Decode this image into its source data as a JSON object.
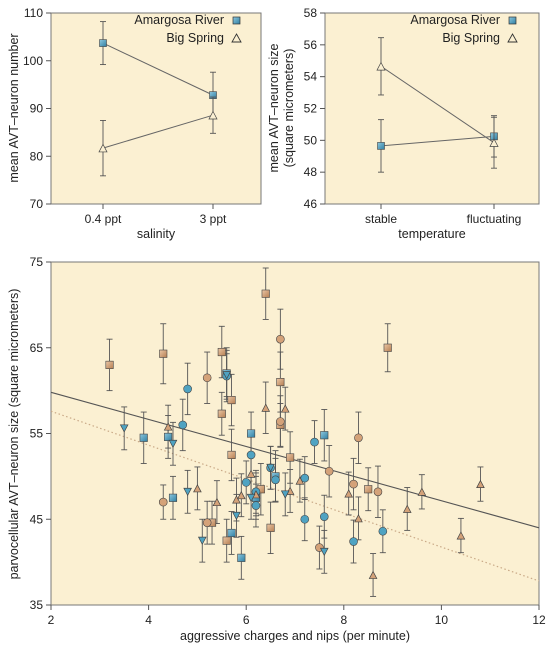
{
  "colors": {
    "panel_bg": "#fbf0d2",
    "amargosa": "#4fa3c2",
    "bigspring": "#d4a279",
    "frame": "#777777",
    "errorbar": "#555555",
    "regression": "#555555",
    "dotted_line": "#c9a987"
  },
  "chart_data": [
    {
      "type": "line",
      "categories": [
        "0.4 ppt",
        "3 ppt"
      ],
      "xlabel": "salinity",
      "ylabel": "mean AVT–neuron number",
      "ylim": [
        70,
        110
      ],
      "yticks": [
        70,
        80,
        90,
        100,
        110
      ],
      "legend_position": "top-right",
      "series": [
        {
          "name": "Amargosa River",
          "marker": "square",
          "values": [
            103.7,
            92.8
          ],
          "error": [
            4.5,
            4.8
          ]
        },
        {
          "name": "Big Spring",
          "marker": "triangle",
          "values": [
            81.7,
            88.6
          ],
          "error": [
            5.8,
            3.8
          ]
        }
      ]
    },
    {
      "type": "line",
      "categories": [
        "stable",
        "fluctuating"
      ],
      "xlabel": "temperature",
      "ylabel": "mean AVT–neuron size\n(square micrometers)",
      "ylim": [
        46,
        58
      ],
      "yticks": [
        46,
        48,
        50,
        52,
        54,
        56,
        58
      ],
      "legend_position": "top-right",
      "series": [
        {
          "name": "Amargosa River",
          "marker": "square",
          "values": [
            49.65,
            50.25
          ],
          "error": [
            1.65,
            1.3
          ]
        },
        {
          "name": "Big Spring",
          "marker": "triangle",
          "values": [
            54.65,
            49.85
          ],
          "error": [
            1.8,
            1.6
          ]
        }
      ]
    },
    {
      "type": "scatter",
      "xlabel": "aggressive charges and nips (per minute)",
      "ylabel": "parvocellular AVT–neuron size (square micrometers)",
      "xlim": [
        2,
        12
      ],
      "ylim": [
        35,
        75
      ],
      "xticks": [
        2,
        4,
        6,
        8,
        10,
        12
      ],
      "yticks": [
        35,
        45,
        55,
        65,
        75
      ],
      "lines": [
        {
          "style": "solid",
          "x": [
            2,
            12
          ],
          "y": [
            59.8,
            44.0
          ]
        },
        {
          "style": "dotted",
          "x": [
            2,
            12
          ],
          "y": [
            57.6,
            37.8
          ]
        }
      ],
      "series": [
        {
          "marker": "square",
          "color": "bigspring",
          "points": [
            [
              3.2,
              63,
              3
            ],
            [
              4.3,
              64.3,
              3.5
            ],
            [
              5.5,
              64.5,
              3
            ],
            [
              6.4,
              71.3,
              3
            ],
            [
              6.7,
              61,
              3.5
            ],
            [
              8.9,
              65,
              2.8
            ],
            [
              5.7,
              58.9,
              3
            ],
            [
              5.5,
              57.3,
              2.5
            ],
            [
              6.7,
              56,
              2.5
            ],
            [
              6.9,
              52.2,
              3
            ],
            [
              5.7,
              52.5,
              3
            ],
            [
              6.3,
              48.5,
              3
            ],
            [
              6.5,
              44,
              3
            ],
            [
              5.3,
              44.6,
              2.5
            ],
            [
              5.6,
              42.5,
              2.5
            ],
            [
              8.5,
              48.5,
              2.5
            ]
          ]
        },
        {
          "marker": "square",
          "color": "amargosa",
          "points": [
            [
              3.9,
              54.5,
              3
            ],
            [
              4.4,
              54.6,
              2.5
            ],
            [
              6.1,
              55,
              2.5
            ],
            [
              7.6,
              54.8,
              3
            ],
            [
              5.6,
              62,
              3
            ],
            [
              6.6,
              50,
              3
            ],
            [
              5.7,
              43.4,
              2.5
            ],
            [
              5.9,
              40.5,
              2.5
            ],
            [
              4.5,
              47.5,
              2.5
            ],
            [
              6.2,
              47.5,
              2.5
            ]
          ]
        },
        {
          "marker": "circle",
          "color": "bigspring",
          "points": [
            [
              6.7,
              66,
              3.5
            ],
            [
              5.2,
              61.5,
              3
            ],
            [
              8.3,
              54.5,
              3
            ],
            [
              7.7,
              50.6,
              3
            ],
            [
              8.2,
              49.1,
              3
            ],
            [
              8.7,
              48.2,
              3
            ],
            [
              4.3,
              47,
              2
            ],
            [
              5.2,
              44.6,
              2.5
            ],
            [
              7.5,
              41.7,
              2.5
            ],
            [
              6.7,
              56.4,
              3
            ]
          ]
        },
        {
          "marker": "circle",
          "color": "amargosa",
          "points": [
            [
              4.8,
              60.2,
              3
            ],
            [
              5.6,
              61.7,
              3
            ],
            [
              4.7,
              56,
              3
            ],
            [
              7.4,
              54,
              2.5
            ],
            [
              6.1,
              52.5,
              2.5
            ],
            [
              6.5,
              51,
              2.5
            ],
            [
              6.6,
              49.6,
              2.5
            ],
            [
              7.2,
              49.8,
              2.5
            ],
            [
              6,
              49.3,
              2.5
            ],
            [
              6.2,
              48.2,
              2.5
            ],
            [
              7.2,
              45,
              2.5
            ],
            [
              7.6,
              45.3,
              2.5
            ],
            [
              8.2,
              42.4,
              2.5
            ],
            [
              8.8,
              43.6,
              2.5
            ],
            [
              6.2,
              46.6,
              2.5
            ]
          ]
        },
        {
          "marker": "triangle",
          "color": "bigspring",
          "points": [
            [
              6.4,
              58,
              3
            ],
            [
              6.8,
              57.9,
              2.5
            ],
            [
              4.4,
              55.8,
              2.5
            ],
            [
              7.1,
              49.5,
              2.5
            ],
            [
              8.1,
              48,
              2.5
            ],
            [
              5,
              48.6,
              2.5
            ],
            [
              5.8,
              47.3,
              2.5
            ],
            [
              6.9,
              48.3,
              2.5
            ],
            [
              9.6,
              48.2,
              2
            ],
            [
              10.8,
              49.1,
              2
            ],
            [
              9.3,
              46.2,
              2.5
            ],
            [
              8.3,
              45.1,
              2.5
            ],
            [
              8.6,
              38.5,
              2.5
            ],
            [
              10.4,
              43.1,
              2
            ],
            [
              5.4,
              47,
              2.5
            ],
            [
              6.2,
              47.9,
              2.5
            ],
            [
              5.9,
              47.8,
              2.5
            ],
            [
              6.1,
              50.3,
              2.5
            ]
          ]
        },
        {
          "marker": "triangle",
          "color": "amargosa",
          "points": [
            [
              3.5,
              55.6,
              2.5
            ],
            [
              4.5,
              53.8,
              2.5
            ],
            [
              4.8,
              48.2,
              2.5
            ],
            [
              5.1,
              42.5,
              2.5
            ],
            [
              5.8,
              45.4,
              2.5
            ],
            [
              6.1,
              47.5,
              2.5
            ],
            [
              6.5,
              51,
              2.5
            ],
            [
              7.6,
              41.2,
              2.5
            ],
            [
              6.8,
              47.9,
              2.5
            ],
            [
              5.6,
              61.8,
              2.5
            ]
          ]
        }
      ]
    }
  ]
}
